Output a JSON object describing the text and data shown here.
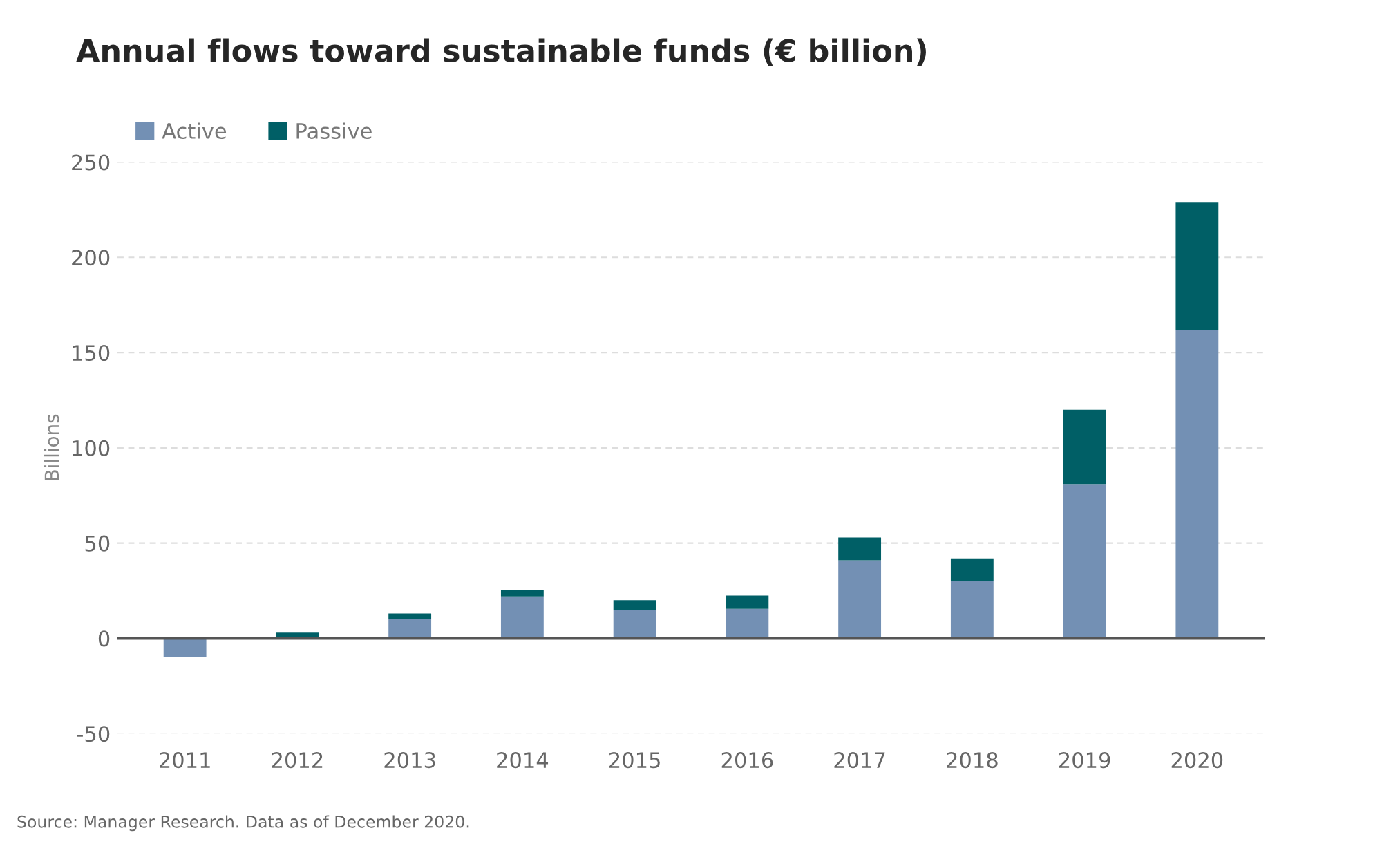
{
  "chart_data": {
    "type": "bar",
    "title": "Annual flows toward sustainable funds (€ billion)",
    "ylabel": "Billions",
    "categories": [
      "2011",
      "2012",
      "2013",
      "2014",
      "2015",
      "2016",
      "2017",
      "2018",
      "2019",
      "2020"
    ],
    "series": [
      {
        "name": "Active",
        "color": "#7390b4",
        "values": [
          -10,
          null,
          10,
          22,
          15,
          15.5,
          41,
          30,
          81,
          162
        ]
      },
      {
        "name": "Passive",
        "color": "#005f66",
        "values": [
          null,
          3,
          3,
          3.5,
          5,
          7,
          12,
          12,
          39,
          67
        ]
      }
    ],
    "stacked": true,
    "ylim": [
      -50,
      250
    ],
    "yticks": [
      -50,
      0,
      50,
      100,
      150,
      200,
      250
    ],
    "grid": "y",
    "legend": "top left",
    "annotations": [
      "Source: Manager Research. Data as of December 2020."
    ]
  }
}
